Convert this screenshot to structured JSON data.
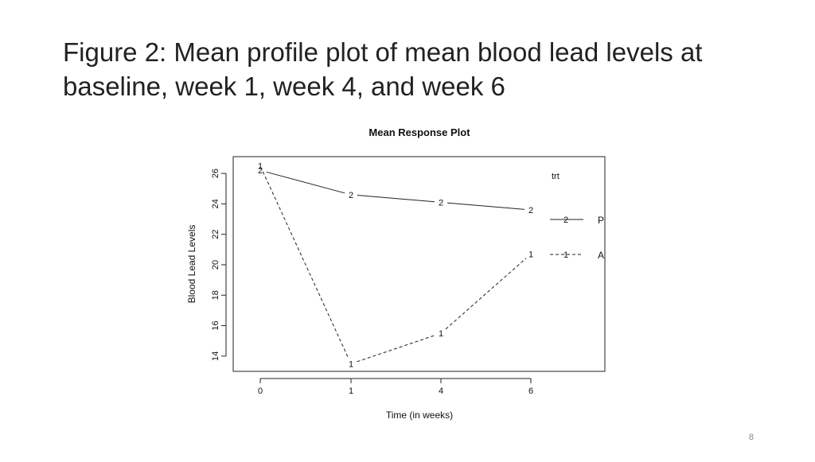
{
  "slide": {
    "title": "Figure 2: Mean profile plot of mean blood lead levels at baseline, week 1, week 4, and week 6",
    "page_number": "8"
  },
  "chart_data": {
    "type": "line",
    "title": "Mean Response Plot",
    "xlabel": "Time (in weeks)",
    "ylabel": "Blood Lead Levels",
    "categories": [
      "0",
      "1",
      "4",
      "6"
    ],
    "yticks": [
      14,
      16,
      18,
      20,
      22,
      24,
      26
    ],
    "ylim": [
      13.0,
      27.1
    ],
    "grid": false,
    "legend": {
      "title": "trt",
      "placement": "right"
    },
    "series": [
      {
        "name": "P",
        "marker": "2",
        "line_style": "solid",
        "values": [
          26.2,
          24.6,
          24.1,
          23.6
        ]
      },
      {
        "name": "A",
        "marker": "1",
        "line_style": "dashed",
        "values": [
          26.5,
          13.5,
          15.5,
          20.7
        ]
      }
    ]
  }
}
